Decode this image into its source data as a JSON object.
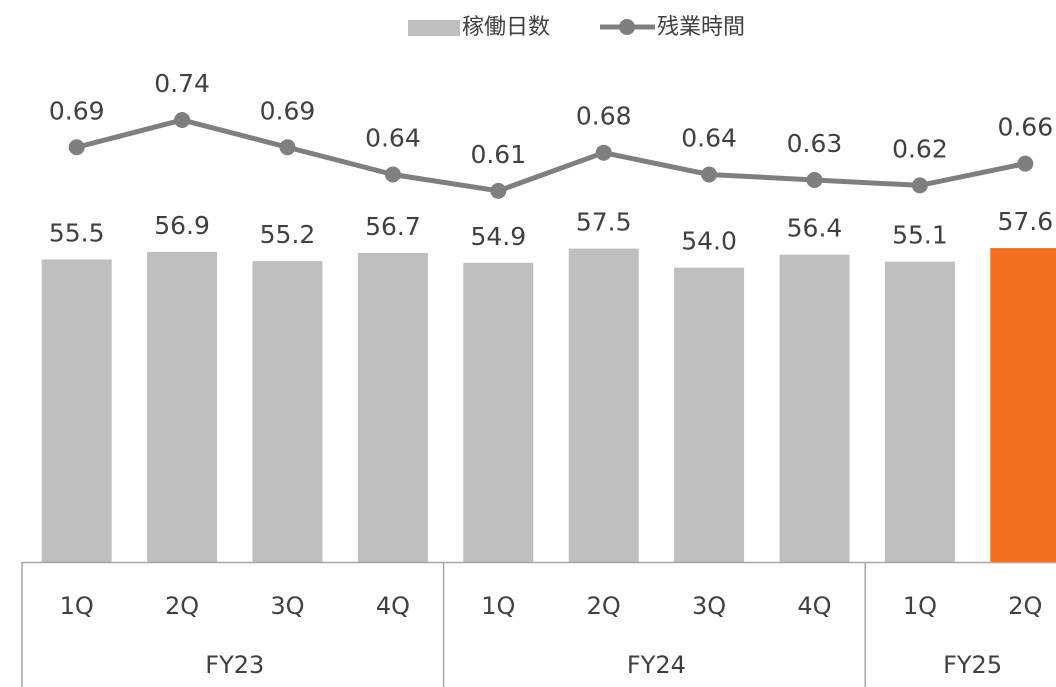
{
  "chart_data": {
    "type": "bar",
    "legend": {
      "position": "top",
      "entries": [
        {
          "name": "稼働日数",
          "kind": "bar",
          "color": "#bfbfbf"
        },
        {
          "name": "残業時間",
          "kind": "line",
          "color": "#7f7f7f"
        }
      ]
    },
    "categories": [
      "1Q",
      "2Q",
      "3Q",
      "4Q",
      "1Q",
      "2Q",
      "3Q",
      "4Q",
      "1Q",
      "2Q"
    ],
    "groups": [
      {
        "label": "FY23",
        "count": 4
      },
      {
        "label": "FY24",
        "count": 4
      },
      {
        "label": "FY25",
        "count": 2
      }
    ],
    "series": [
      {
        "name": "稼働日数",
        "type": "bar",
        "values": [
          55.5,
          56.9,
          55.2,
          56.7,
          54.9,
          57.5,
          54.0,
          56.4,
          55.1,
          57.6
        ],
        "value_labels": [
          "55.5",
          "56.9",
          "55.2",
          "56.7",
          "54.9",
          "57.5",
          "54.0",
          "56.4",
          "55.1",
          "57.6"
        ],
        "color": "#bfbfbf",
        "highlight_color": "#f37021",
        "highlight_index": 9
      },
      {
        "name": "残業時間",
        "type": "line",
        "values": [
          0.69,
          0.74,
          0.69,
          0.64,
          0.61,
          0.68,
          0.64,
          0.63,
          0.62,
          0.66
        ],
        "value_labels": [
          "0.69",
          "0.74",
          "0.69",
          "0.64",
          "0.61",
          "0.68",
          "0.64",
          "0.63",
          "0.62",
          "0.66"
        ],
        "color": "#7f7f7f"
      }
    ],
    "grid": false
  }
}
